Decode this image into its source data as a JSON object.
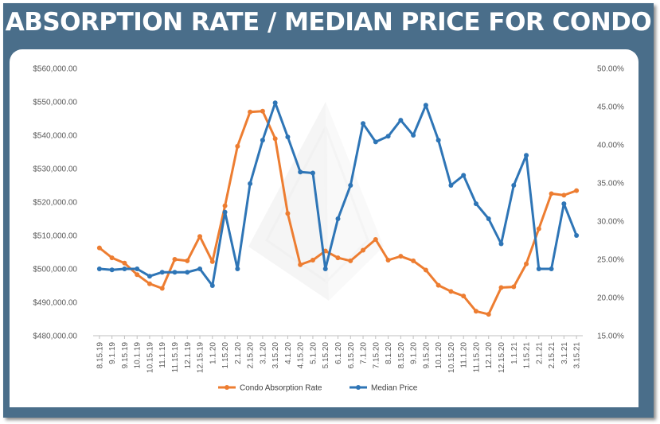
{
  "title": "ABSORPTION RATE / MEDIAN PRICE FOR CONDO",
  "chart_data": {
    "type": "line",
    "title": "",
    "x": [
      "8.15.19",
      "9.1.19",
      "9.15.19",
      "10.1.19",
      "10.15.19",
      "11.1.19",
      "11.15.19",
      "12.1.19",
      "12.15.19",
      "1.1.20",
      "1.15.20",
      "2.1.20",
      "2.15.20",
      "3.1.20",
      "3.15.20",
      "4.1.20",
      "4.15.20",
      "5.1.20",
      "5.15.20",
      "6.1.20",
      "6.15.20",
      "7.1.20",
      "7.15.20",
      "8.1.20",
      "8.15.20",
      "9.1.20",
      "9.15.20",
      "10.1.20",
      "10.15.20",
      "11.1.20",
      "11.15.20",
      "12.1.20",
      "12.15.20",
      "1.1.21",
      "1.15.21",
      "2.1.21",
      "2.15.21",
      "3.1.21",
      "3.15.21"
    ],
    "left_axis": {
      "range": [
        480000,
        560000
      ],
      "ticks": [
        "$480,000.00",
        "$490,000.00",
        "$500,000.00",
        "$510,000.00",
        "$520,000.00",
        "$530,000.00",
        "$540,000.00",
        "$550,000.00",
        "$560,000.00"
      ]
    },
    "right_axis": {
      "range": [
        15,
        50
      ],
      "ticks": [
        "15.00%",
        "20.00%",
        "25.00%",
        "30.00%",
        "35.00%",
        "40.00%",
        "45.00%",
        "50.00%"
      ]
    },
    "series": [
      {
        "name": "Condo Absorption Rate",
        "axis": "right",
        "color": "#ed7d31",
        "values": [
          26.5,
          25.2,
          24.5,
          23.0,
          21.8,
          21.2,
          25.0,
          24.8,
          28.0,
          24.7,
          32.0,
          39.8,
          44.3,
          44.4,
          40.8,
          31.0,
          24.3,
          24.9,
          26.1,
          25.2,
          24.8,
          26.2,
          27.6,
          24.9,
          25.4,
          24.8,
          23.6,
          21.6,
          20.8,
          20.2,
          18.2,
          17.8,
          21.3,
          21.4,
          24.4,
          29.0,
          33.6,
          33.4,
          34.0
        ]
      },
      {
        "name": "Median Price",
        "axis": "left",
        "color": "#2e75b6",
        "values": [
          500000,
          499700,
          500000,
          500000,
          497800,
          499000,
          499000,
          499000,
          500000,
          495000,
          517000,
          500000,
          525500,
          538500,
          549700,
          539500,
          529000,
          528700,
          500000,
          515000,
          525000,
          543500,
          538000,
          539700,
          544500,
          540000,
          549000,
          538500,
          525000,
          528000,
          519500,
          515000,
          507500,
          525000,
          534000,
          500000,
          500000,
          519500,
          510000
        ]
      }
    ],
    "legend": "bottom",
    "grid": false
  }
}
